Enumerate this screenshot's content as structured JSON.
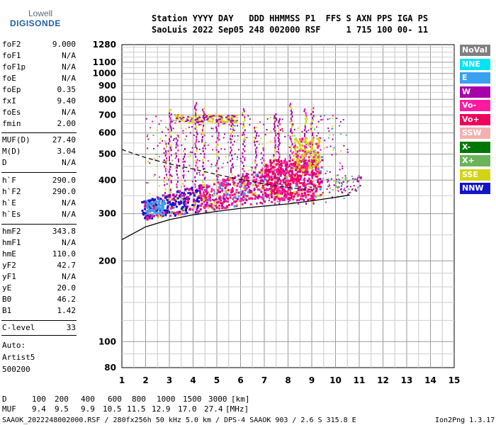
{
  "logo": {
    "line1": "Lowell",
    "line2": "DIGISONDE"
  },
  "header": {
    "line1": "Station YYYY DAY   DDD HHMMSS P1  FFS S AXN PPS IGA PS",
    "line2": "SaoLuis 2022 Sep05 248 002000 RSF     1 715 100 00- 11"
  },
  "params": {
    "group1": [
      {
        "label": "foF2",
        "value": "9.000"
      },
      {
        "label": "foF1",
        "value": "N/A"
      },
      {
        "label": "foF1p",
        "value": "N/A"
      },
      {
        "label": "foE",
        "value": "N/A"
      },
      {
        "label": "foEp",
        "value": "0.35"
      },
      {
        "label": "fxI",
        "value": "9.40"
      },
      {
        "label": "foEs",
        "value": "N/A"
      },
      {
        "label": "fmin",
        "value": "2.00"
      }
    ],
    "group2": [
      {
        "label": "MUF(D)",
        "value": "27.40"
      },
      {
        "label": "M(D)",
        "value": "3.04"
      },
      {
        "label": "D",
        "value": "N/A"
      }
    ],
    "group3": [
      {
        "label": "h`F",
        "value": "290.0"
      },
      {
        "label": "h`F2",
        "value": "290.0"
      },
      {
        "label": "h`E",
        "value": "N/A"
      },
      {
        "label": "h`Es",
        "value": "N/A"
      }
    ],
    "group4": [
      {
        "label": "hmF2",
        "value": "343.8"
      },
      {
        "label": "hmF1",
        "value": "N/A"
      },
      {
        "label": "hmE",
        "value": "110.0"
      },
      {
        "label": "yF2",
        "value": "42.7"
      },
      {
        "label": "yF1",
        "value": "N/A"
      },
      {
        "label": "yE",
        "value": "20.0"
      },
      {
        "label": "B0",
        "value": "46.2"
      },
      {
        "label": "B1",
        "value": "1.42"
      }
    ],
    "group5": [
      {
        "label": "C-level",
        "value": "33"
      }
    ]
  },
  "auto": {
    "line1": "Auto:",
    "line2": "Artist5",
    "line3": "500200"
  },
  "legend": [
    {
      "label": "NoVal",
      "color": "#808080"
    },
    {
      "label": "NNE",
      "color": "#00e5f5"
    },
    {
      "label": "E",
      "color": "#3aa0f0"
    },
    {
      "label": "W",
      "color": "#a800a8"
    },
    {
      "label": "Vo-",
      "color": "#ff1aa0"
    },
    {
      "label": "Vo+",
      "color": "#f0005a"
    },
    {
      "label": "SSW",
      "color": "#f4b0b0"
    },
    {
      "label": "X-",
      "color": "#007800"
    },
    {
      "label": "X+",
      "color": "#6ab45a"
    },
    {
      "label": "SSE",
      "color": "#d4d414"
    },
    {
      "label": "NNW",
      "color": "#1414c8"
    }
  ],
  "chart_data": {
    "type": "scatter",
    "title": "",
    "xlabel": "",
    "ylabel": "",
    "xlim": [
      1,
      15
    ],
    "ylim": [
      80,
      1280
    ],
    "y_scale": "log",
    "grid": true,
    "x_ticks": [
      "1",
      "2",
      "3",
      "4",
      "5",
      "6",
      "7",
      "8",
      "9",
      "10",
      "11",
      "12",
      "13",
      "14",
      "15"
    ],
    "y_ticks": [
      "80",
      "100",
      "200",
      "300",
      "400",
      "500",
      "600",
      "700",
      "800",
      "900",
      "1000",
      "1100",
      "1280"
    ],
    "trace_summary": [
      {
        "name": "NNW",
        "region": "F-layer bottom",
        "x_range": [
          1.8,
          4.5
        ],
        "y_range": [
          290,
          330
        ]
      },
      {
        "name": "Vo-",
        "region": "F-layer trace",
        "x_range": [
          2.0,
          9.2
        ],
        "y_range": [
          300,
          420
        ]
      },
      {
        "name": "Vo+",
        "region": "F-layer trace",
        "x_range": [
          4.5,
          9.2
        ],
        "y_range": [
          330,
          520
        ]
      },
      {
        "name": "SSE",
        "region": "spread",
        "x_range": [
          3.5,
          9.0
        ],
        "y_range": [
          350,
          700
        ]
      },
      {
        "name": "W",
        "region": "spread",
        "x_range": [
          2.0,
          10.5
        ],
        "y_range": [
          300,
          700
        ]
      }
    ],
    "profile_curve": [
      [
        1,
        240
      ],
      [
        2,
        268
      ],
      [
        3,
        285
      ],
      [
        4,
        297
      ],
      [
        5,
        306
      ],
      [
        6,
        314
      ],
      [
        7,
        320
      ],
      [
        8,
        326
      ],
      [
        9,
        335
      ],
      [
        10,
        345
      ],
      [
        10.6,
        352
      ]
    ],
    "dashed_curve": [
      [
        1,
        520
      ],
      [
        2,
        485
      ],
      [
        3,
        460
      ],
      [
        4,
        440
      ],
      [
        5,
        420
      ],
      [
        6,
        402
      ],
      [
        7,
        388
      ],
      [
        8,
        375
      ],
      [
        9,
        368
      ],
      [
        9.2,
        366
      ]
    ],
    "bottom_table": {
      "d_label": "D",
      "d_values": [
        "100",
        "200",
        "400",
        "600",
        "800",
        "1000",
        "1500",
        "3000",
        "[km]"
      ],
      "muf_label": "MUF",
      "muf_values": [
        "9.4",
        "9.5",
        "9.9",
        "10.5",
        "11.5",
        "12.9",
        "17.0",
        "27.4",
        "[MHz]"
      ]
    }
  },
  "footer": {
    "left": "SAAOK_2022248002000.RSF / 280fx256h 50 kHz 5.0 km / DPS-4 SAAOK 903 / 2.6 S 315.8 E",
    "right": "Ion2Png 1.3.17"
  }
}
